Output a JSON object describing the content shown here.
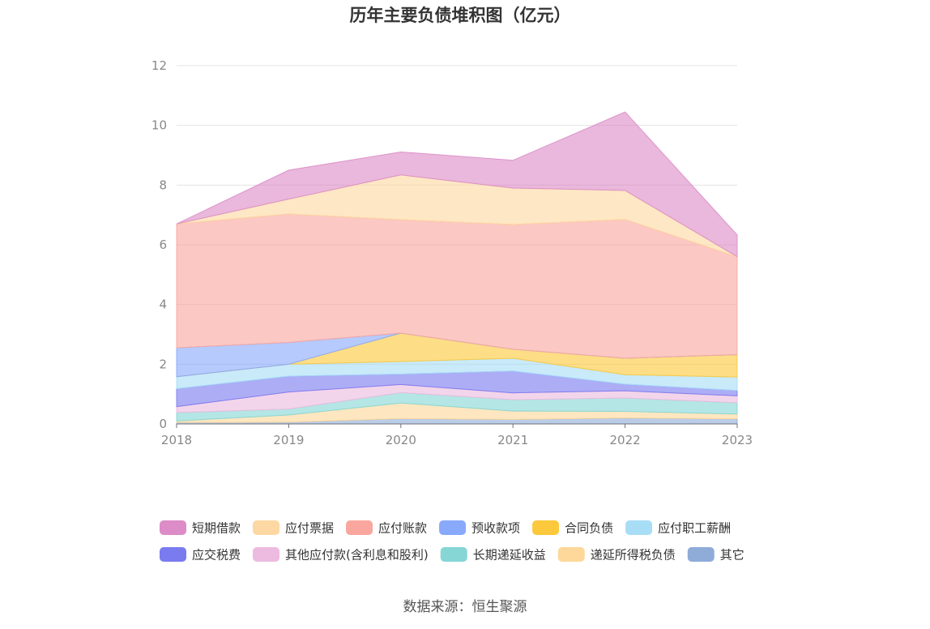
{
  "chart_data": {
    "type": "area",
    "stacked": true,
    "title": "历年主要负债堆积图（亿元）",
    "x": [
      "2018",
      "2019",
      "2020",
      "2021",
      "2022",
      "2023"
    ],
    "ylim": [
      0,
      12
    ],
    "yticks": [
      0,
      2,
      4,
      6,
      8,
      10,
      12
    ],
    "grid": true,
    "legend_position": "bottom",
    "series": [
      {
        "name": "其它",
        "color": "#8facd9",
        "values": [
          0.05,
          0.06,
          0.18,
          0.15,
          0.2,
          0.17
        ]
      },
      {
        "name": "递延所得税负债",
        "color": "#fdd89a",
        "values": [
          0.05,
          0.24,
          0.52,
          0.28,
          0.22,
          0.16
        ]
      },
      {
        "name": "长期递延收益",
        "color": "#86d6d6",
        "values": [
          0.28,
          0.2,
          0.35,
          0.38,
          0.45,
          0.38
        ]
      },
      {
        "name": "其他应付款(含利息和股利)",
        "color": "#ecbbdf",
        "values": [
          0.2,
          0.57,
          0.27,
          0.23,
          0.24,
          0.23
        ]
      },
      {
        "name": "应交税费",
        "color": "#7b7bf0",
        "values": [
          0.6,
          0.53,
          0.35,
          0.73,
          0.22,
          0.18
        ]
      },
      {
        "name": "应付职工薪酬",
        "color": "#a8ddf6",
        "values": [
          0.4,
          0.4,
          0.42,
          0.43,
          0.32,
          0.45
        ]
      },
      {
        "name": "合同负债",
        "color": "#fcc93c",
        "values": [
          0.0,
          0.0,
          0.95,
          0.3,
          0.55,
          0.75
        ]
      },
      {
        "name": "预收款项",
        "color": "#89a9fb",
        "values": [
          0.97,
          0.73,
          0.0,
          0.0,
          0.0,
          0.0
        ]
      },
      {
        "name": "应付账款",
        "color": "#f9a79e",
        "values": [
          4.15,
          4.3,
          3.8,
          4.18,
          4.65,
          3.28
        ]
      },
      {
        "name": "应付票据",
        "color": "#fdd8a2",
        "values": [
          0.0,
          0.5,
          1.5,
          1.22,
          0.97,
          0.0
        ]
      },
      {
        "name": "短期借款",
        "color": "#dc8cc6",
        "values": [
          0.0,
          0.97,
          0.77,
          0.93,
          2.63,
          0.73
        ]
      }
    ]
  },
  "legend_order": [
    "短期借款",
    "应付票据",
    "应付账款",
    "预收款项",
    "合同负债",
    "应付职工薪酬",
    "应交税费",
    "其他应付款(含利息和股利)",
    "长期递延收益",
    "递延所得税负债",
    "其它"
  ],
  "source": "数据来源：恒生聚源"
}
